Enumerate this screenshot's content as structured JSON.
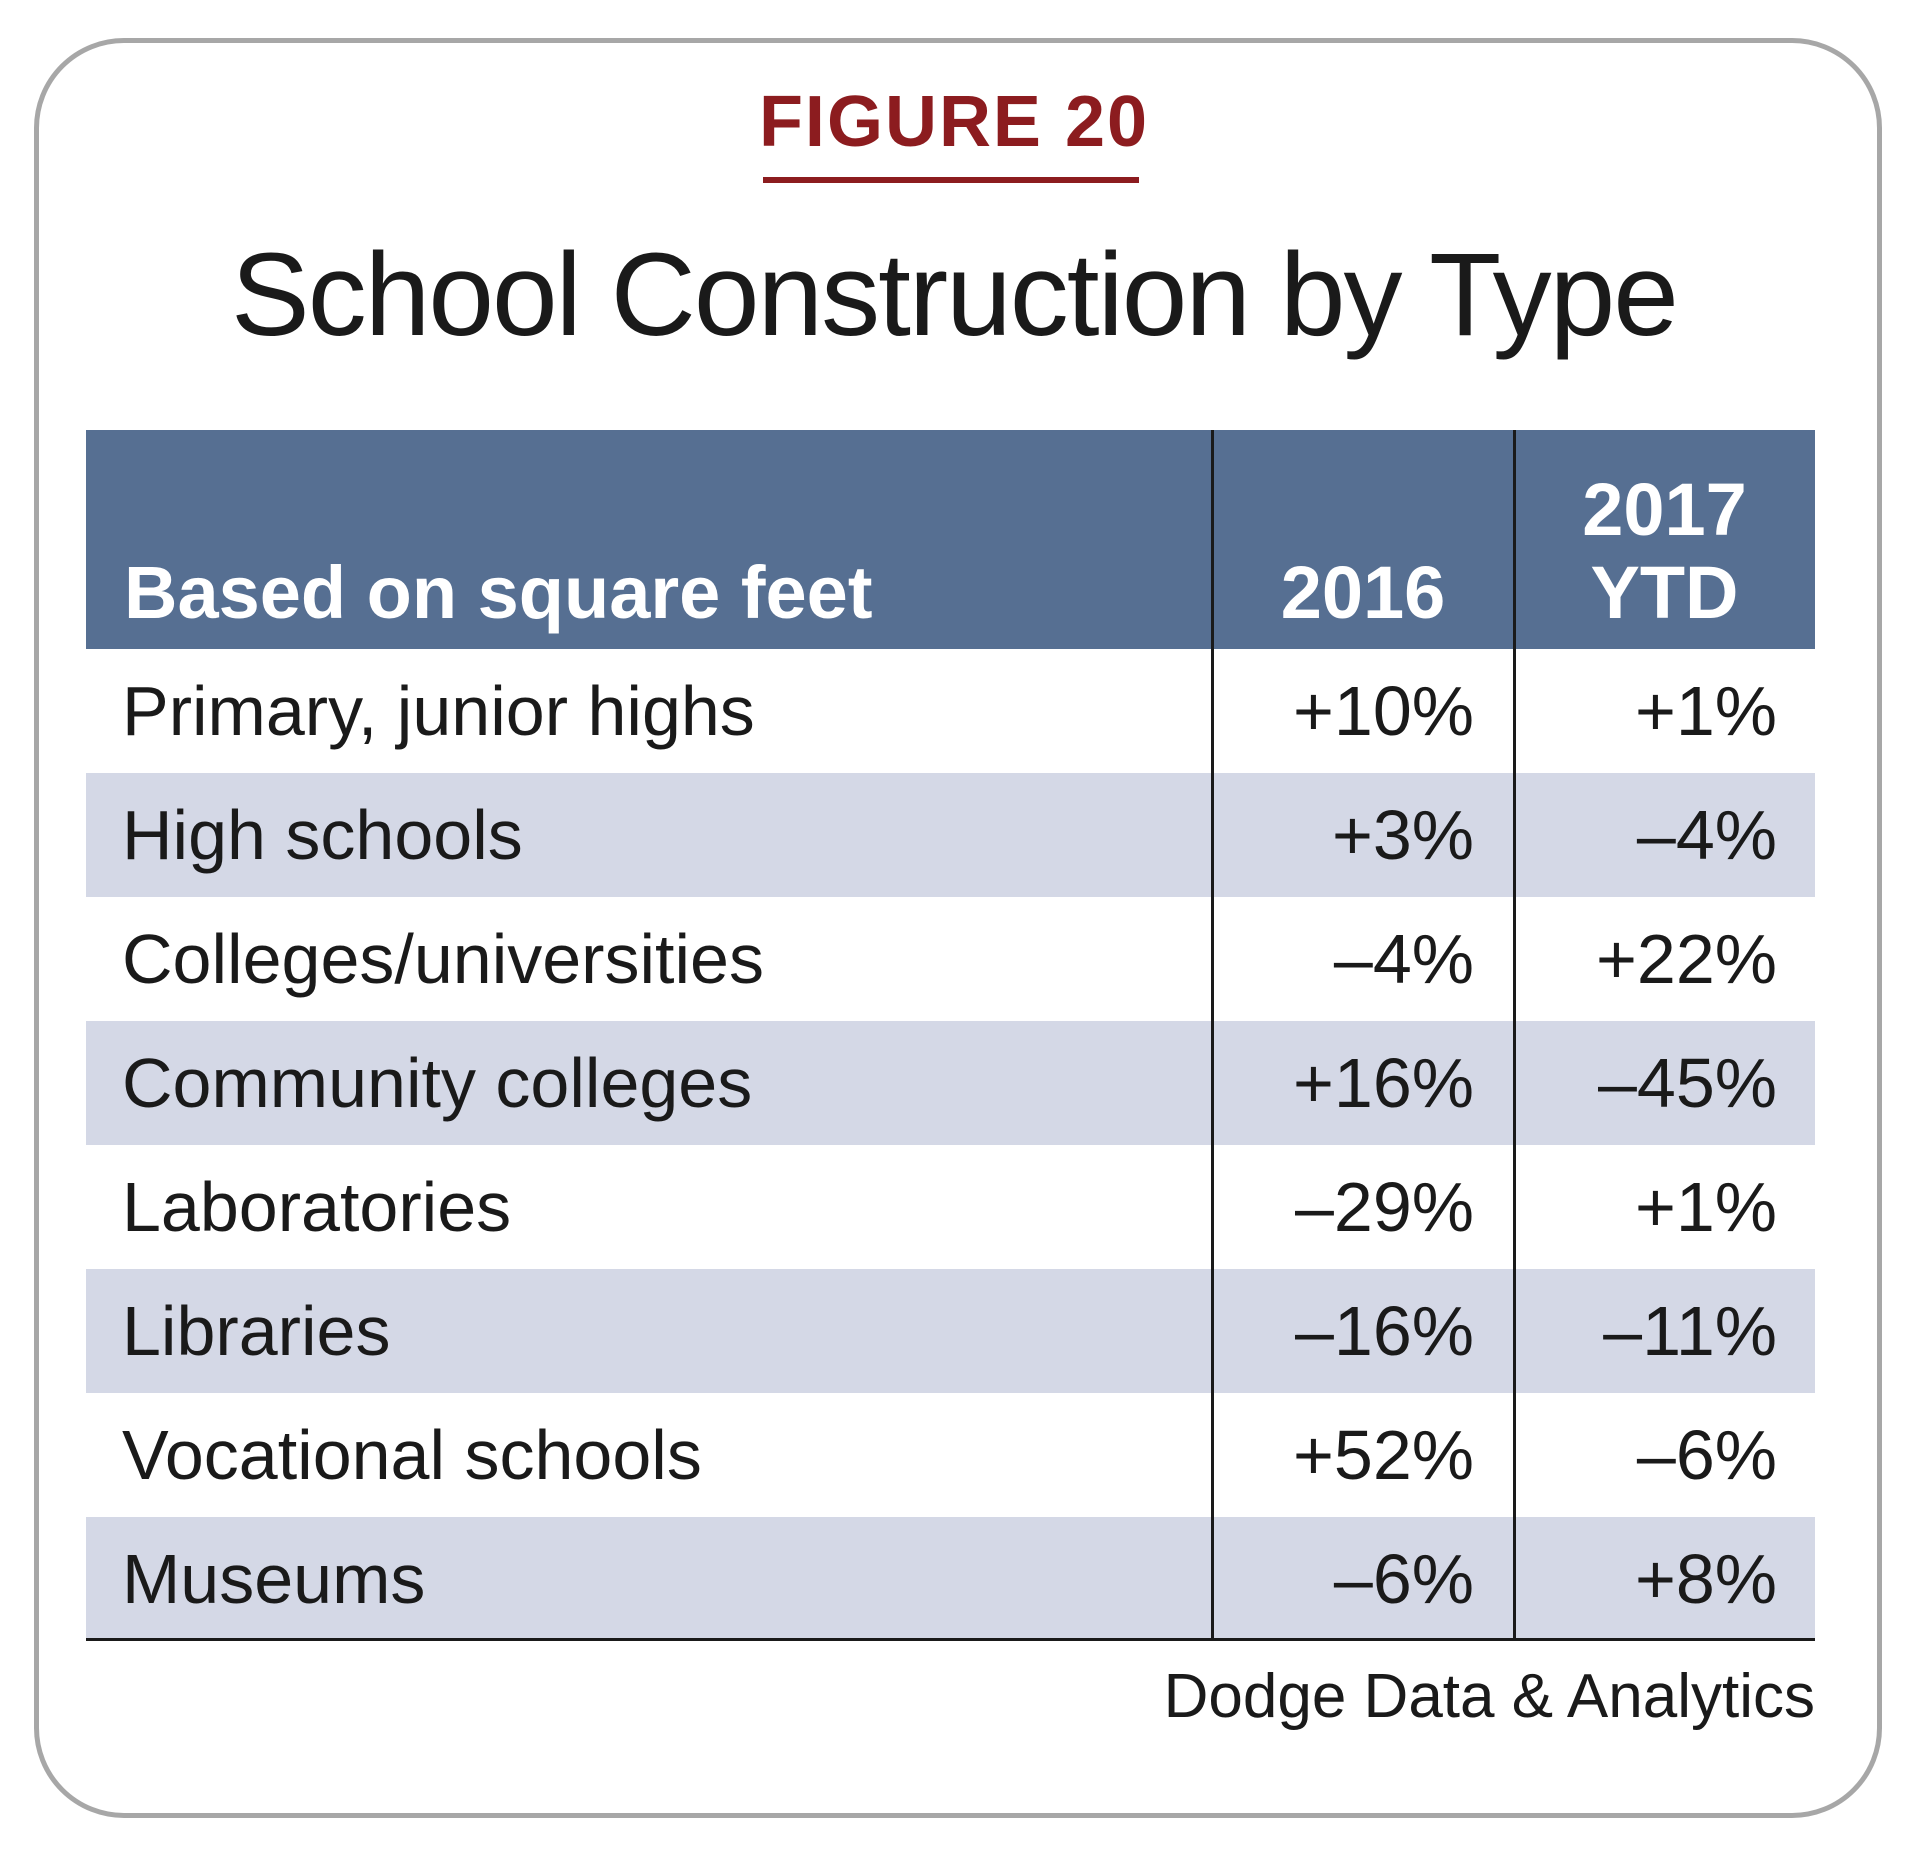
{
  "figure_label": "FIGURE 20",
  "title": "School Construction by Type",
  "source": "Dodge Data & Analytics",
  "colors": {
    "figure_label": "#8c1c1f",
    "header_bg": "#566f92",
    "stripe_bg": "#d4d8e6",
    "frame_border": "#a7a7a7"
  },
  "chart_data": {
    "type": "table",
    "title": "School Construction by Type",
    "columns": [
      "Based on square feet",
      "2016",
      "2017 YTD"
    ],
    "header": {
      "label": "Based on square feet",
      "col_2016": "2016",
      "col_2017_line1": "2017",
      "col_2017_line2": "YTD"
    },
    "rows": [
      {
        "label": "Primary, junior highs",
        "v2016": "+10%",
        "v2017": "+1%"
      },
      {
        "label": "High schools",
        "v2016": "+3%",
        "v2017": "–4%"
      },
      {
        "label": "Colleges/universities",
        "v2016": "–4%",
        "v2017": "+22%"
      },
      {
        "label": "Community colleges",
        "v2016": "+16%",
        "v2017": "–45%"
      },
      {
        "label": "Laboratories",
        "v2016": "–29%",
        "v2017": "+1%"
      },
      {
        "label": "Libraries",
        "v2016": "–16%",
        "v2017": "–11%"
      },
      {
        "label": "Vocational schools",
        "v2016": "+52%",
        "v2017": "–6%"
      },
      {
        "label": "Museums",
        "v2016": "–6%",
        "v2017": "+8%"
      }
    ]
  }
}
